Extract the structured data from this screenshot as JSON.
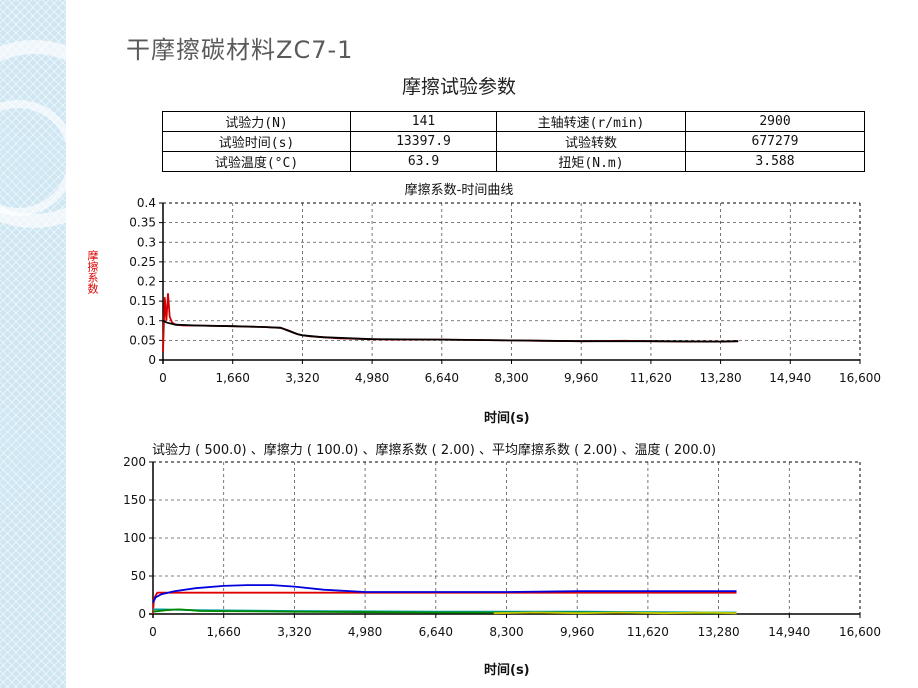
{
  "slide": {
    "title": "干摩擦碳材料ZC7-1"
  },
  "params": {
    "heading": "摩擦试验参数",
    "rows": [
      [
        "试验力(N)",
        "141",
        "主轴转速(r/min)",
        "2900"
      ],
      [
        "试验时间(s)",
        "13397.9",
        "试验转数",
        "677279"
      ],
      [
        "试验温度(°C)",
        "63.9",
        "扭矩(N.m)",
        "3.588"
      ]
    ]
  },
  "chart_data": [
    {
      "type": "line",
      "title": "摩擦系数-时间曲线",
      "xlabel": "时间(s)",
      "ylabel": "摩擦系数",
      "xlim": [
        0,
        16600
      ],
      "ylim": [
        0,
        0.4
      ],
      "xticks": [
        "0",
        "1,660",
        "3,320",
        "4,980",
        "6,640",
        "8,300",
        "9,960",
        "11,620",
        "13,280",
        "14,940",
        "16,600"
      ],
      "yticks": [
        "0",
        "0.05",
        "0.1",
        "0.15",
        "0.2",
        "0.25",
        "0.3",
        "0.35",
        "0.4"
      ],
      "grid": true,
      "series": [
        {
          "color": "#d40000",
          "x": [
            0,
            40,
            80,
            120,
            160,
            220,
            300,
            500,
            800,
            1200,
            1660,
            2000,
            2400,
            2800,
            3000,
            3100,
            3200,
            3320,
            3500,
            3800,
            4200,
            4980,
            5500,
            6640,
            7500,
            8300,
            9000,
            9960,
            11000,
            11620,
            12500,
            13280,
            13700
          ],
          "y": [
            0.02,
            0.16,
            0.1,
            0.17,
            0.11,
            0.095,
            0.09,
            0.088,
            0.088,
            0.087,
            0.086,
            0.085,
            0.084,
            0.082,
            0.075,
            0.07,
            0.066,
            0.063,
            0.06,
            0.058,
            0.055,
            0.053,
            0.052,
            0.052,
            0.051,
            0.05,
            0.049,
            0.048,
            0.049,
            0.048,
            0.047,
            0.047,
            0.048
          ]
        },
        {
          "color": "#000000",
          "x": [
            0,
            100,
            300,
            800,
            1660,
            2400,
            2800,
            3000,
            3200,
            3320,
            3800,
            4980,
            6640,
            8300,
            9960,
            11620,
            13280,
            13700
          ],
          "y": [
            0.1,
            0.095,
            0.09,
            0.088,
            0.086,
            0.084,
            0.082,
            0.074,
            0.066,
            0.063,
            0.058,
            0.053,
            0.052,
            0.05,
            0.048,
            0.048,
            0.047,
            0.048
          ]
        }
      ]
    },
    {
      "type": "line",
      "legend": "试验力 ( 500.0) 、摩擦力 ( 100.0) 、摩擦系数 ( 2.00) 、平均摩擦系数 ( 2.00) 、温度 ( 200.0)",
      "xlabel": "时间(s)",
      "xlim": [
        0,
        16600
      ],
      "ylim": [
        0,
        200
      ],
      "xticks": [
        "0",
        "1,660",
        "3,320",
        "4,980",
        "6,640",
        "8,300",
        "9,960",
        "11,620",
        "13,280",
        "14,940",
        "16,600"
      ],
      "yticks": [
        "0",
        "50",
        "100",
        "150",
        "200"
      ],
      "grid": true,
      "series": [
        {
          "color": "#e00000",
          "x": [
            0,
            20,
            100,
            300,
            13700
          ],
          "y": [
            0,
            20,
            28,
            28,
            28
          ]
        },
        {
          "color": "#0000dd",
          "x": [
            0,
            60,
            200,
            500,
            1000,
            1660,
            2200,
            2800,
            3320,
            4000,
            4980,
            6640,
            8300,
            9960,
            11620,
            13280,
            13700
          ],
          "y": [
            15,
            22,
            26,
            30,
            34,
            37,
            38,
            38,
            36,
            32,
            29,
            29,
            29,
            30,
            30,
            30,
            30
          ]
        },
        {
          "color": "#00a0a0",
          "x": [
            0,
            200,
            1000,
            3320,
            6640,
            9960,
            13700
          ],
          "y": [
            6,
            6,
            5,
            4,
            3,
            3,
            2
          ]
        },
        {
          "color": "#008800",
          "x": [
            0,
            300,
            600,
            900,
            1100,
            3320,
            6640,
            9960,
            13700
          ],
          "y": [
            3,
            5,
            6,
            5,
            4,
            3,
            2,
            2,
            1
          ]
        },
        {
          "color": "#c8c800",
          "x": [
            8000,
            9000,
            10000,
            11000,
            12000,
            13000,
            13700
          ],
          "y": [
            1,
            2,
            1,
            2,
            1,
            2,
            1
          ]
        }
      ]
    }
  ]
}
